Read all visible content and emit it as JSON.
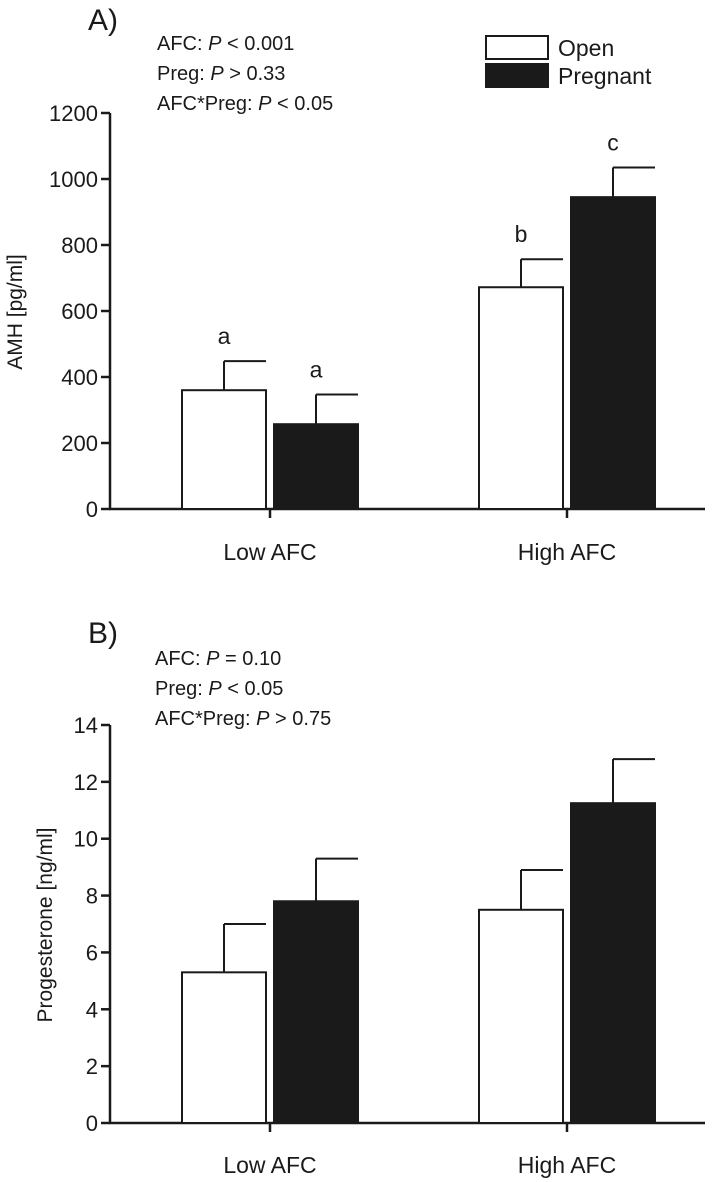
{
  "chart_data": [
    {
      "type": "bar",
      "panel_label": "A)",
      "title": "",
      "stats": [
        {
          "prefix": "AFC: ",
          "p": "P",
          "suffix": " < 0.001"
        },
        {
          "prefix": "Preg: ",
          "p": "P",
          "suffix": " > 0.33"
        },
        {
          "prefix": "AFC*Preg: ",
          "p": "P",
          "suffix": " < 0.05"
        }
      ],
      "categories": [
        "Low AFC",
        "High AFC"
      ],
      "series": [
        {
          "name": "Open",
          "fill": "#ffffff",
          "values": [
            360,
            672
          ],
          "errors": [
            88,
            85
          ],
          "letters": [
            "a",
            "b"
          ]
        },
        {
          "name": "Pregnant",
          "fill": "#1a1a1a",
          "values": [
            257,
            945
          ],
          "errors": [
            90,
            90
          ],
          "letters": [
            "a",
            "c"
          ]
        }
      ],
      "xlabel": "",
      "ylabel": "AMH [pg/ml]",
      "ylim": [
        0,
        1200
      ],
      "yticks": [
        "0",
        "200",
        "400",
        "600",
        "800",
        "1000",
        "1200"
      ],
      "grid": false,
      "legend_position": "top-right"
    },
    {
      "type": "bar",
      "panel_label": "B)",
      "title": "",
      "stats": [
        {
          "prefix": "AFC: ",
          "p": "P",
          "suffix": " = 0.10"
        },
        {
          "prefix": "Preg: ",
          "p": "P",
          "suffix": " < 0.05"
        },
        {
          "prefix": "AFC*Preg: ",
          "p": "P",
          "suffix": " > 0.75"
        }
      ],
      "categories": [
        "Low AFC",
        "High AFC"
      ],
      "series": [
        {
          "name": "Open",
          "fill": "#ffffff",
          "values": [
            5.3,
            7.5
          ],
          "errors": [
            1.7,
            1.4
          ],
          "letters": [
            "",
            ""
          ]
        },
        {
          "name": "Pregnant",
          "fill": "#1a1a1a",
          "values": [
            7.8,
            11.25
          ],
          "errors": [
            1.5,
            1.55
          ],
          "letters": [
            "",
            ""
          ]
        }
      ],
      "xlabel": "",
      "ylabel": "Progesterone [ng/ml]",
      "ylim": [
        0,
        14
      ],
      "yticks": [
        "0",
        "2",
        "4",
        "6",
        "8",
        "10",
        "12",
        "14"
      ],
      "grid": false,
      "legend_position": "none"
    }
  ]
}
